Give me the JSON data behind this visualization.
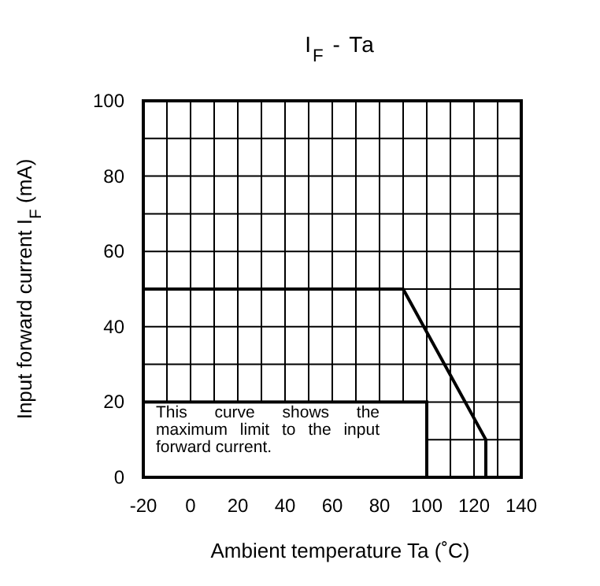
{
  "chart_data": {
    "type": "line",
    "title": "I$_{F}$ - Ta",
    "xlabel": "Ambient temperature    Ta    (˚C)",
    "ylabel": "Input forward current    I$_{F}$ (mA)",
    "annotations": [
      "This curve shows the maximum limit to the input forward current."
    ],
    "x": [
      -20,
      90,
      125,
      125
    ],
    "series": [
      {
        "color": "#000000",
        "values": [
          50,
          50,
          10,
          0
        ]
      }
    ],
    "xlim": [
      -20,
      140
    ],
    "xticks": [
      -20,
      {
        "value": -10,
        "label": null
      },
      0,
      {
        "value": 10,
        "label": null
      },
      20,
      {
        "value": 30,
        "label": null
      },
      40,
      {
        "value": 50,
        "label": null
      },
      60,
      {
        "value": 70,
        "label": null
      },
      80,
      {
        "value": 90,
        "label": null
      },
      100,
      {
        "value": 110,
        "label": null
      },
      120,
      {
        "value": 130,
        "label": null
      },
      140
    ],
    "ylim": [
      0,
      100
    ],
    "yticks": [
      0,
      {
        "value": 10,
        "label": null
      },
      20,
      {
        "value": 30,
        "label": null
      },
      40,
      {
        "value": 50,
        "label": null
      },
      60,
      {
        "value": 70,
        "label": null
      },
      80,
      {
        "value": 90,
        "label": null
      },
      100
    ],
    "grid": true,
    "marker": "none",
    "line_style": "solid"
  }
}
